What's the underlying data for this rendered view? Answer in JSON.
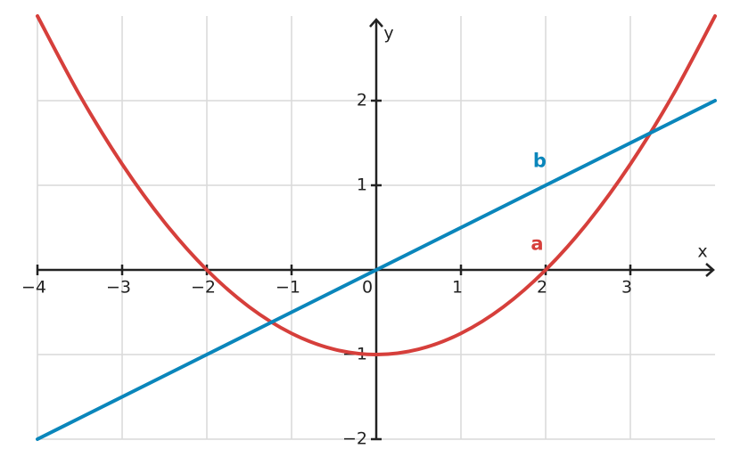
{
  "chart_data": {
    "type": "line",
    "x": [
      -4,
      -3.5,
      -3,
      -2.5,
      -2,
      -1.5,
      -1,
      -0.5,
      0,
      0.5,
      1,
      1.5,
      2,
      2.5,
      3,
      3.5,
      4
    ],
    "series": [
      {
        "name": "a",
        "color": "#d63f3b",
        "values": [
          3,
          2.0625,
          1.25,
          0.5625,
          0,
          -0.4375,
          -0.75,
          -0.9375,
          -1,
          -0.9375,
          -0.75,
          -0.4375,
          0,
          0.5625,
          1.25,
          2.0625,
          3
        ]
      },
      {
        "name": "b",
        "color": "#0a86bb",
        "values": [
          -2,
          -1.75,
          -1.5,
          -1.25,
          -1,
          -0.75,
          -0.5,
          -0.25,
          0,
          0.25,
          0.5,
          0.75,
          1,
          1.25,
          1.5,
          1.75,
          2
        ]
      }
    ],
    "x_label": "x",
    "y_label": "y",
    "xlim": [
      -4,
      4
    ],
    "ylim": [
      -2,
      3
    ],
    "xticks": [
      {
        "value": -4,
        "label": "−4"
      },
      {
        "value": -3,
        "label": "−3"
      },
      {
        "value": -2,
        "label": "−2"
      },
      {
        "value": -1,
        "label": "−1"
      },
      0,
      1,
      2,
      3
    ],
    "yticks": [
      {
        "value": -2,
        "label": "−2"
      },
      {
        "value": -1,
        "label": "−1"
      },
      1,
      2
    ],
    "grid": true
  }
}
